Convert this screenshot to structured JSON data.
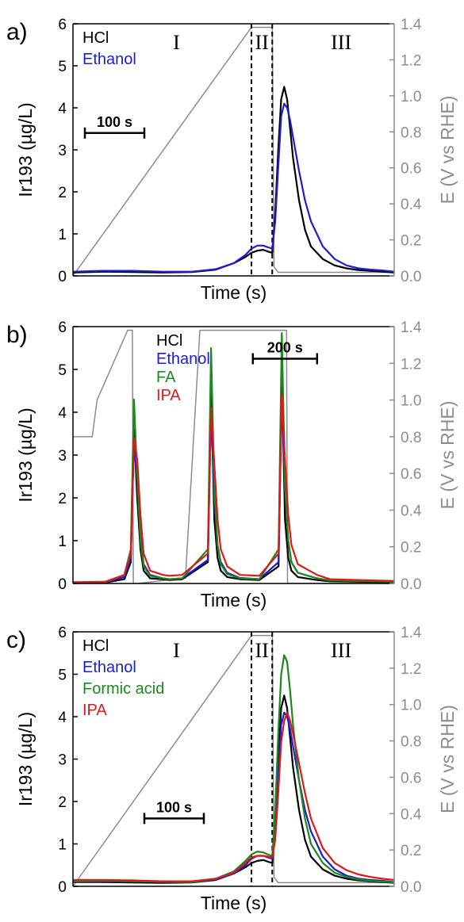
{
  "colors": {
    "HCl": "#000000",
    "Ethanol": "#1c1cd6",
    "FA": "#1a8a1a",
    "IPA": "#e01818",
    "potential": "#8c8c8c",
    "axis": "#000000"
  },
  "chart_data": [
    {
      "type": "line",
      "panel_label": "a)",
      "xlabel": "Time (s)",
      "ylabel": "Ir193 (µg/L)",
      "y2label": "E (V vs RHE)",
      "ylim": [
        0,
        6
      ],
      "y2lim": [
        0,
        1.4
      ],
      "yticks": [
        "0",
        "1",
        "2",
        "3",
        "4",
        "5",
        "6"
      ],
      "y2ticks": [
        "0.0",
        "0.2",
        "0.4",
        "0.6",
        "0.8",
        "1.0",
        "1.2",
        "1.4"
      ],
      "xlim": [
        0,
        540
      ],
      "scale_bar": {
        "label": "100 s",
        "x_start": 20,
        "x_end": 120,
        "y": 3.4
      },
      "regions": [
        "I",
        "II",
        "III"
      ],
      "region_bounds": [
        300,
        335
      ],
      "legend": [
        "HCl",
        "Ethanol"
      ],
      "series": [
        {
          "name": "HCl",
          "key": "HCl",
          "x": [
            0,
            50,
            100,
            150,
            200,
            240,
            270,
            290,
            300,
            310,
            320,
            328,
            335,
            340,
            345,
            350,
            355,
            360,
            365,
            370,
            380,
            390,
            400,
            420,
            440,
            460,
            480,
            500,
            520,
            540
          ],
          "y": [
            0.08,
            0.1,
            0.09,
            0.08,
            0.09,
            0.15,
            0.3,
            0.45,
            0.55,
            0.6,
            0.62,
            0.58,
            0.55,
            1.5,
            3.0,
            4.2,
            4.5,
            4.2,
            3.5,
            2.8,
            1.8,
            1.1,
            0.7,
            0.4,
            0.25,
            0.18,
            0.14,
            0.12,
            0.1,
            0.08
          ]
        },
        {
          "name": "Ethanol",
          "key": "Ethanol",
          "x": [
            0,
            50,
            100,
            150,
            200,
            240,
            270,
            290,
            300,
            310,
            320,
            328,
            335,
            340,
            345,
            350,
            355,
            360,
            365,
            370,
            380,
            390,
            400,
            420,
            440,
            460,
            480,
            500,
            520,
            540
          ],
          "y": [
            0.1,
            0.12,
            0.12,
            0.1,
            0.1,
            0.16,
            0.3,
            0.5,
            0.65,
            0.72,
            0.72,
            0.68,
            0.65,
            1.3,
            2.6,
            3.8,
            4.1,
            4.0,
            3.7,
            3.3,
            2.5,
            1.8,
            1.3,
            0.7,
            0.4,
            0.25,
            0.18,
            0.15,
            0.13,
            0.1
          ]
        }
      ],
      "potential": {
        "x": [
          0,
          300,
          335,
          338,
          345,
          540
        ],
        "e": [
          0.0,
          1.38,
          1.38,
          0.05,
          0.02,
          0.02
        ]
      }
    },
    {
      "type": "line",
      "panel_label": "b)",
      "xlabel": "Time (s)",
      "ylabel": "Ir193 (µg/L)",
      "y2label": "E (V vs RHE)",
      "ylim": [
        0,
        6
      ],
      "y2lim": [
        0,
        1.4
      ],
      "yticks": [
        "0",
        "1",
        "2",
        "3",
        "4",
        "5",
        "6"
      ],
      "y2ticks": [
        "0.0",
        "0.2",
        "0.4",
        "0.6",
        "0.8",
        "1.0",
        "1.2",
        "1.4"
      ],
      "xlim": [
        0,
        1000
      ],
      "scale_bar": {
        "label": "200 s",
        "x_start": 560,
        "x_end": 760,
        "y": 5.25
      },
      "legend": [
        "HCl",
        "Ethanol",
        "FA",
        "IPA"
      ],
      "series": [
        {
          "name": "HCl",
          "key": "HCl",
          "x": [
            0,
            100,
            160,
            180,
            190,
            200,
            210,
            220,
            240,
            280,
            300,
            340,
            420,
            430,
            440,
            450,
            460,
            480,
            520,
            580,
            640,
            650,
            660,
            670,
            680,
            700,
            760,
            800,
            1000
          ],
          "y": [
            0.02,
            0.02,
            0.1,
            0.5,
            3.6,
            2.0,
            0.8,
            0.3,
            0.12,
            0.1,
            0.08,
            0.1,
            0.5,
            4.5,
            1.5,
            0.6,
            0.3,
            0.15,
            0.1,
            0.08,
            0.4,
            4.9,
            1.5,
            0.6,
            0.3,
            0.15,
            0.08,
            0.05,
            0.03
          ]
        },
        {
          "name": "Ethanol",
          "key": "Ethanol",
          "x": [
            0,
            100,
            160,
            180,
            190,
            200,
            210,
            220,
            240,
            280,
            300,
            340,
            420,
            430,
            440,
            450,
            460,
            480,
            520,
            580,
            640,
            650,
            660,
            670,
            680,
            700,
            760,
            800,
            1000
          ],
          "y": [
            0.02,
            0.03,
            0.15,
            0.6,
            3.3,
            2.4,
            1.1,
            0.45,
            0.2,
            0.12,
            0.1,
            0.12,
            0.55,
            4.1,
            2.0,
            0.9,
            0.5,
            0.25,
            0.13,
            0.1,
            0.5,
            4.4,
            2.2,
            1.0,
            0.5,
            0.25,
            0.12,
            0.07,
            0.05
          ]
        },
        {
          "name": "FA",
          "key": "FA",
          "x": [
            0,
            100,
            160,
            180,
            190,
            200,
            210,
            220,
            240,
            280,
            300,
            340,
            420,
            430,
            440,
            450,
            460,
            480,
            520,
            580,
            640,
            650,
            660,
            670,
            680,
            700,
            760,
            800,
            1000
          ],
          "y": [
            0.02,
            0.03,
            0.2,
            0.8,
            4.3,
            2.5,
            1.0,
            0.4,
            0.18,
            0.12,
            0.1,
            0.12,
            0.8,
            5.5,
            2.2,
            0.9,
            0.45,
            0.22,
            0.12,
            0.1,
            0.8,
            5.85,
            2.3,
            1.0,
            0.5,
            0.25,
            0.12,
            0.07,
            0.04
          ]
        },
        {
          "name": "IPA",
          "key": "IPA",
          "x": [
            0,
            100,
            160,
            180,
            190,
            200,
            210,
            220,
            240,
            280,
            300,
            340,
            420,
            430,
            440,
            450,
            460,
            480,
            520,
            580,
            640,
            650,
            660,
            670,
            680,
            700,
            760,
            800,
            1000
          ],
          "y": [
            0.03,
            0.04,
            0.2,
            0.7,
            3.4,
            2.9,
            1.6,
            0.7,
            0.3,
            0.2,
            0.18,
            0.2,
            0.7,
            4.1,
            2.8,
            1.5,
            0.8,
            0.4,
            0.2,
            0.18,
            0.7,
            4.4,
            2.9,
            1.6,
            0.9,
            0.45,
            0.2,
            0.1,
            0.06
          ]
        }
      ],
      "potential": {
        "x": [
          0,
          60,
          75,
          170,
          185,
          188,
          200,
          350,
          395,
          396,
          410,
          650,
          665,
          668,
          680,
          1000
        ],
        "e": [
          0.8,
          0.8,
          1.0,
          1.38,
          1.38,
          0.0,
          0.0,
          0.03,
          1.38,
          1.38,
          1.38,
          1.38,
          1.38,
          0.0,
          0.0,
          0.0
        ]
      }
    },
    {
      "type": "line",
      "panel_label": "c)",
      "xlabel": "Time (s)",
      "ylabel": "Ir193 (µg/L)",
      "y2label": "E (V vs RHE)",
      "ylim": [
        0,
        6
      ],
      "y2lim": [
        0,
        1.4
      ],
      "yticks": [
        "0",
        "1",
        "2",
        "3",
        "4",
        "5",
        "6"
      ],
      "y2ticks": [
        "0.0",
        "0.2",
        "0.4",
        "0.6",
        "0.8",
        "1.0",
        "1.2",
        "1.4"
      ],
      "xlim": [
        0,
        540
      ],
      "scale_bar": {
        "label": "100 s",
        "x_start": 120,
        "x_end": 220,
        "y": 1.6
      },
      "regions": [
        "I",
        "II",
        "III"
      ],
      "region_bounds": [
        300,
        335
      ],
      "legend": [
        "HCl",
        "Ethanol",
        "Formic acid",
        "IPA"
      ],
      "series": [
        {
          "name": "HCl",
          "key": "HCl",
          "x": [
            0,
            50,
            100,
            150,
            200,
            240,
            270,
            290,
            300,
            310,
            320,
            328,
            335,
            340,
            345,
            350,
            355,
            360,
            365,
            370,
            380,
            390,
            400,
            420,
            440,
            460,
            480,
            500,
            520,
            540
          ],
          "y": [
            0.1,
            0.1,
            0.09,
            0.08,
            0.09,
            0.15,
            0.3,
            0.45,
            0.55,
            0.6,
            0.62,
            0.58,
            0.55,
            1.5,
            3.0,
            4.2,
            4.5,
            4.2,
            3.5,
            2.8,
            1.8,
            1.1,
            0.7,
            0.4,
            0.25,
            0.18,
            0.14,
            0.12,
            0.1,
            0.08
          ]
        },
        {
          "name": "Ethanol",
          "key": "Ethanol",
          "x": [
            0,
            50,
            100,
            150,
            200,
            240,
            270,
            290,
            300,
            310,
            320,
            328,
            335,
            340,
            345,
            350,
            355,
            360,
            365,
            370,
            380,
            390,
            400,
            420,
            440,
            460,
            480,
            500,
            520,
            540
          ],
          "y": [
            0.12,
            0.12,
            0.12,
            0.1,
            0.1,
            0.16,
            0.3,
            0.5,
            0.65,
            0.72,
            0.72,
            0.68,
            0.65,
            1.3,
            2.6,
            3.8,
            4.1,
            4.0,
            3.7,
            3.3,
            2.5,
            1.8,
            1.3,
            0.7,
            0.4,
            0.25,
            0.18,
            0.15,
            0.13,
            0.1
          ]
        },
        {
          "name": "Formic acid",
          "key": "FA",
          "x": [
            0,
            50,
            100,
            150,
            200,
            240,
            270,
            290,
            300,
            310,
            320,
            328,
            335,
            340,
            345,
            350,
            355,
            360,
            365,
            370,
            380,
            390,
            400,
            420,
            440,
            460,
            480,
            500,
            520,
            540
          ],
          "y": [
            0.12,
            0.13,
            0.12,
            0.11,
            0.1,
            0.18,
            0.35,
            0.6,
            0.75,
            0.82,
            0.8,
            0.75,
            0.72,
            1.8,
            3.6,
            5.0,
            5.45,
            5.3,
            4.6,
            3.8,
            2.5,
            1.6,
            1.0,
            0.55,
            0.32,
            0.22,
            0.16,
            0.13,
            0.11,
            0.09
          ]
        },
        {
          "name": "IPA",
          "key": "IPA",
          "x": [
            0,
            50,
            100,
            150,
            200,
            240,
            270,
            290,
            300,
            310,
            320,
            328,
            335,
            340,
            345,
            350,
            355,
            360,
            365,
            370,
            380,
            390,
            400,
            420,
            440,
            460,
            480,
            500,
            520,
            540
          ],
          "y": [
            0.15,
            0.15,
            0.14,
            0.12,
            0.12,
            0.18,
            0.32,
            0.55,
            0.68,
            0.72,
            0.72,
            0.7,
            0.68,
            1.1,
            2.2,
            3.4,
            3.9,
            4.1,
            3.9,
            3.6,
            2.9,
            2.2,
            1.6,
            0.9,
            0.55,
            0.38,
            0.28,
            0.22,
            0.18,
            0.15
          ]
        }
      ],
      "potential": {
        "x": [
          0,
          300,
          335,
          338,
          345,
          540
        ],
        "e": [
          0.0,
          1.38,
          1.38,
          0.05,
          0.02,
          0.02
        ]
      }
    }
  ]
}
